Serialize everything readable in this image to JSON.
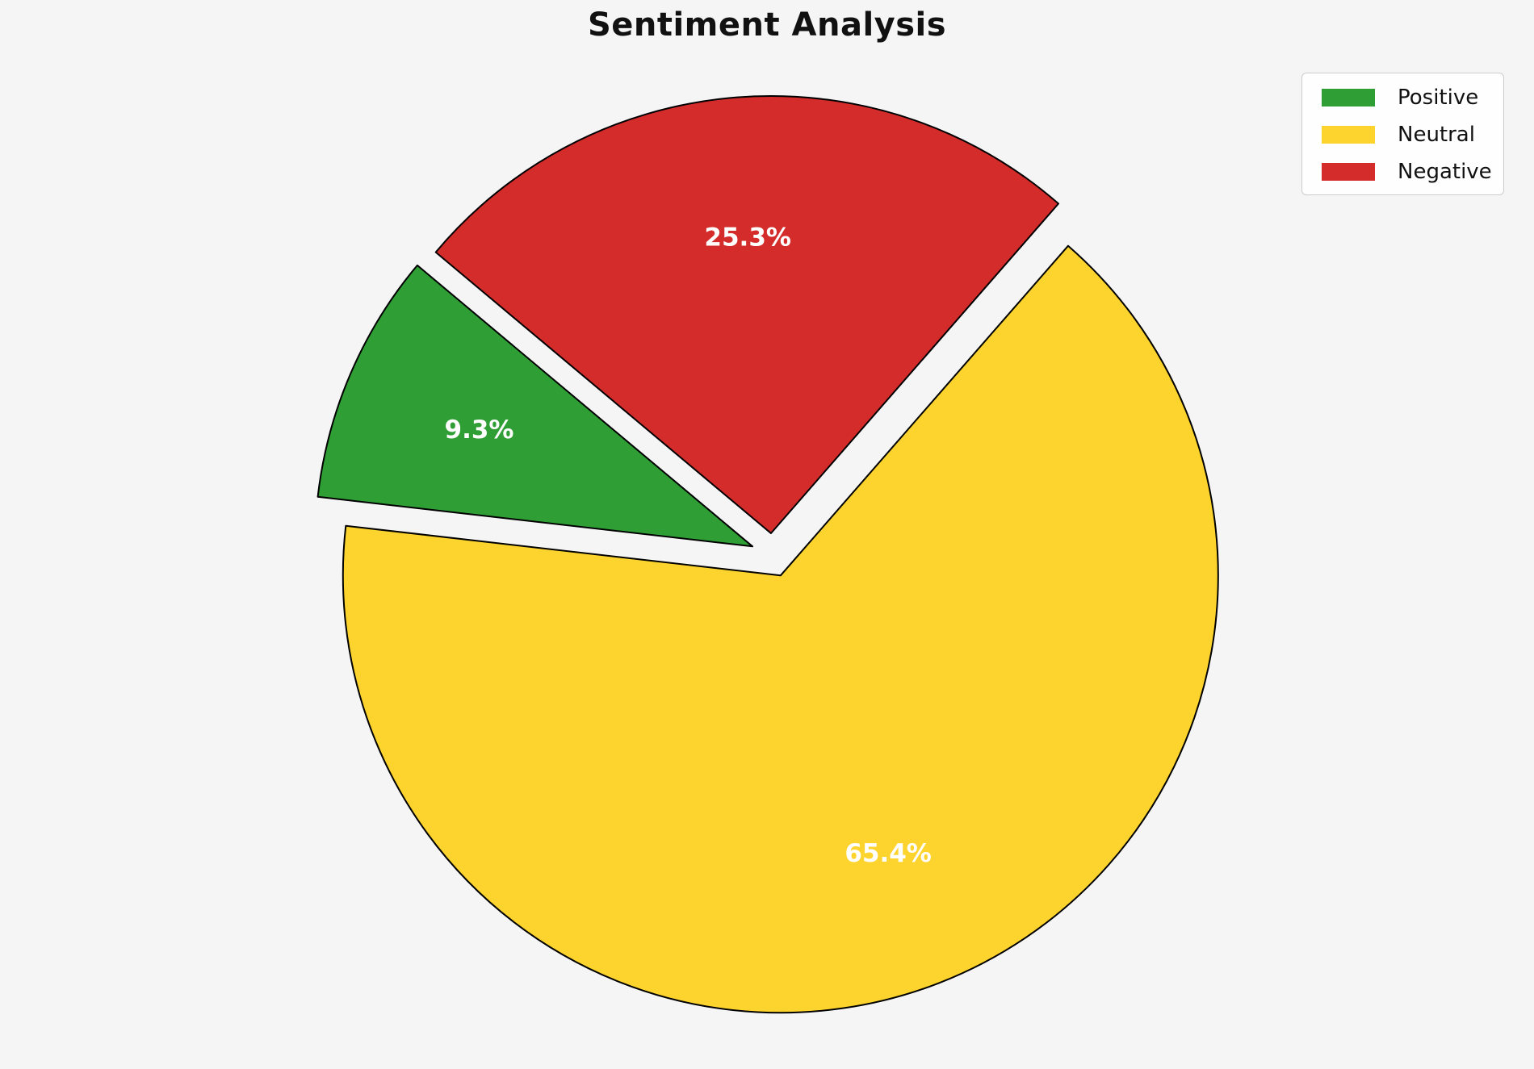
{
  "title": "Sentiment Analysis",
  "background_color": "#f5f5f6",
  "chart_data": {
    "type": "pie",
    "title": "Sentiment Analysis",
    "labels": [
      "Positive",
      "Neutral",
      "Negative"
    ],
    "values": [
      9.3,
      65.4,
      25.3
    ],
    "pct_labels": [
      "9.3%",
      "65.4%",
      "25.3%"
    ],
    "colors": [
      "#2e9e35",
      "#fdd32e",
      "#d32c2a"
    ],
    "slice_edge_color": "#000000",
    "pct_label_color": "#ffffff",
    "start_angle": 140,
    "direction": "counterclockwise",
    "explode": 0.05,
    "pct_distance": 0.68,
    "legend_position": "upper right",
    "grid": false
  },
  "legend": {
    "items": [
      {
        "label": "Positive",
        "color": "#2e9e35"
      },
      {
        "label": "Neutral",
        "color": "#fdd32e"
      },
      {
        "label": "Negative",
        "color": "#d32c2a"
      }
    ]
  }
}
